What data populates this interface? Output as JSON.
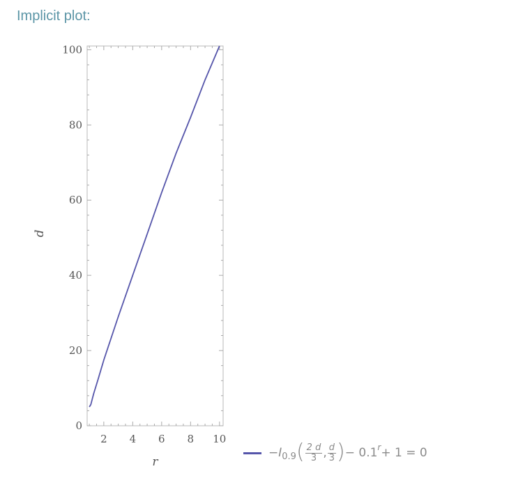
{
  "pod": {
    "title": "Implicit plot:"
  },
  "chart_data": {
    "type": "line",
    "title": "",
    "xlabel": "r",
    "ylabel": "d",
    "xlim": [
      0.85,
      10.25
    ],
    "ylim": [
      0,
      101
    ],
    "x_ticks": [
      2,
      4,
      6,
      8,
      10
    ],
    "y_ticks": [
      0,
      20,
      40,
      60,
      80,
      100
    ],
    "grid": false,
    "legend_position": "bottom-right, outside plot",
    "series": [
      {
        "name": "−I0.9(2d/3, d/3) − 0.1^r + 1 = 0",
        "color": "#5555aa",
        "x": [
          1.0,
          1.1,
          1.3,
          1.6,
          2,
          3,
          4,
          5,
          6,
          7,
          8,
          9,
          10
        ],
        "y": [
          5,
          5.6,
          8.5,
          12.3,
          17.5,
          29,
          40,
          51,
          62,
          72.5,
          82,
          92,
          101
        ]
      }
    ]
  },
  "legend": {
    "minus": "−",
    "I": "I",
    "sub": "0.9",
    "frac1_num": "2 d",
    "frac1_den": "3",
    "comma": ",",
    "frac2_num": "d",
    "frac2_den": "3",
    "tail": "− 0.1",
    "sup": "r",
    "rest": " + 1 = 0"
  }
}
